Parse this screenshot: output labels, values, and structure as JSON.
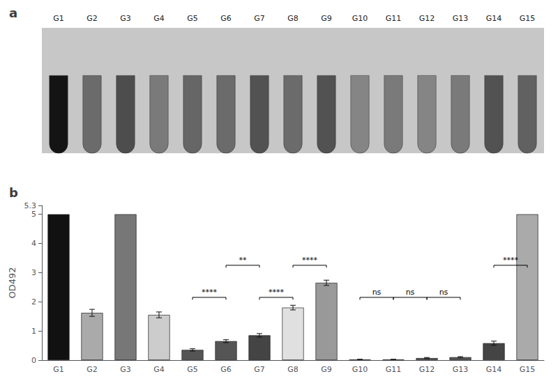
{
  "chart_data": [
    {
      "type": "tubes",
      "title": "a",
      "categories": [
        "G1",
        "G2",
        "G3",
        "G4",
        "G5",
        "G6",
        "G7",
        "G8",
        "G9",
        "G10",
        "G11",
        "G12",
        "G13",
        "G14",
        "G15"
      ],
      "values": [
        0.08,
        0.42,
        0.3,
        0.48,
        0.4,
        0.42,
        0.32,
        0.42,
        0.32,
        0.52,
        0.48,
        0.52,
        0.48,
        0.32,
        0.38
      ]
    },
    {
      "type": "bar",
      "title": "b",
      "categories": [
        "G1",
        "G2",
        "G3",
        "G4",
        "G5",
        "G6",
        "G7",
        "G8",
        "G9",
        "G10",
        "G11",
        "G12",
        "G13",
        "G14",
        "G15"
      ],
      "values": [
        5.0,
        1.62,
        5.0,
        1.55,
        0.35,
        0.65,
        0.85,
        1.8,
        2.65,
        0.02,
        0.02,
        0.07,
        0.1,
        0.58,
        5.0
      ],
      "errors": [
        0.0,
        0.12,
        0.0,
        0.1,
        0.04,
        0.05,
        0.06,
        0.08,
        0.09,
        0.01,
        0.01,
        0.02,
        0.02,
        0.07,
        0.0
      ],
      "colors": [
        "#111111",
        "#aaaaaa",
        "#777777",
        "#cccccc",
        "#555555",
        "#555555",
        "#444444",
        "#e0e0e0",
        "#999999",
        "#bbbbbb",
        "#aaaaaa",
        "#555555",
        "#555555",
        "#444444",
        "#aaaaaa"
      ],
      "y_label": "OD492",
      "ylim": [
        0,
        5.3
      ],
      "yticks": [
        0,
        1,
        2,
        3,
        4,
        5
      ],
      "grid": false,
      "annotations": [
        {
          "from": "G5",
          "to": "G6",
          "y": 2.15,
          "label": "****"
        },
        {
          "from": "G6",
          "to": "G7",
          "y": 3.25,
          "label": "**"
        },
        {
          "from": "G7",
          "to": "G8",
          "y": 2.15,
          "label": "****"
        },
        {
          "from": "G8",
          "to": "G9",
          "y": 3.25,
          "label": "****"
        },
        {
          "from": "G10",
          "to": "G11",
          "y": 2.15,
          "label": "ns"
        },
        {
          "from": "G11",
          "to": "G12",
          "y": 2.15,
          "label": "ns"
        },
        {
          "from": "G12",
          "to": "G13",
          "y": 2.15,
          "label": "ns"
        },
        {
          "from": "G14",
          "to": "G15",
          "y": 3.25,
          "label": "****"
        }
      ]
    }
  ]
}
